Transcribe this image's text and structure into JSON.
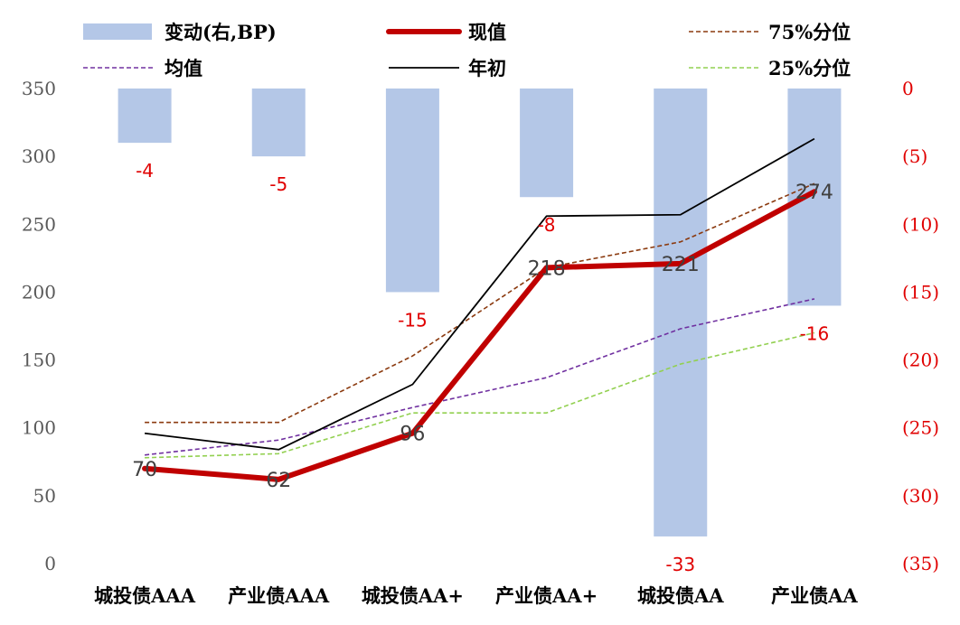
{
  "chart_data": {
    "type": "bar",
    "categories": [
      "城投债AAA",
      "产业债AAA",
      "城投债AA+",
      "产业债AA+",
      "城投债AA",
      "产业债AA"
    ],
    "y_left": {
      "min": 0,
      "max": 350,
      "ticks": [
        "0",
        "50",
        "100",
        "150",
        "200",
        "250",
        "300",
        "350"
      ]
    },
    "y_right": {
      "min": 0,
      "max": 35,
      "inverted": true,
      "ticks": [
        "0",
        "(5)",
        "(10)",
        "(15)",
        "(20)",
        "(25)",
        "(30)",
        "(35)"
      ]
    },
    "series": [
      {
        "name": "变动(右,BP)",
        "kind": "bar",
        "axis": "right",
        "color": "#b4c7e7",
        "values": [
          -4,
          -5,
          -15,
          -8,
          -33,
          -16
        ],
        "labels": [
          "-4",
          "-5",
          "-15",
          "-8",
          "-33",
          "-16"
        ]
      },
      {
        "name": "现值",
        "kind": "line",
        "axis": "left",
        "color": "#c00000",
        "values": [
          70,
          62,
          96,
          218,
          221,
          274
        ],
        "labels": [
          "70",
          "62",
          "96",
          "218",
          "221",
          "274"
        ]
      },
      {
        "name": "75%分位",
        "kind": "line-dashed",
        "axis": "left",
        "color": "#8b3a0f",
        "values": [
          104,
          104,
          153,
          218,
          237,
          280
        ]
      },
      {
        "name": "均值",
        "kind": "line-dashed",
        "axis": "left",
        "color": "#7030a0",
        "values": [
          80,
          91,
          115,
          137,
          173,
          195
        ]
      },
      {
        "name": "年初",
        "kind": "line",
        "axis": "left",
        "color": "#000000",
        "values": [
          96,
          84,
          132,
          256,
          257,
          313
        ]
      },
      {
        "name": "25%分位",
        "kind": "line-dashed",
        "axis": "left",
        "color": "#92d050",
        "values": [
          78,
          81,
          111,
          111,
          147,
          170
        ]
      }
    ],
    "legend": "top"
  }
}
